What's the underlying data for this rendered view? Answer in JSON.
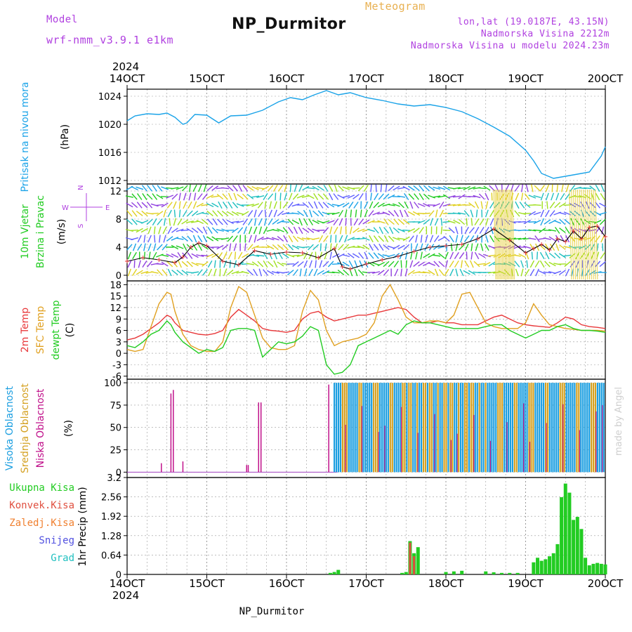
{
  "header": {
    "model_label": "Model",
    "model_name": "wrf-nmm_v3.9.1 e1km",
    "chart_type_label": "Meteogram",
    "station": "NP_Durmitor",
    "lonlat": "lon,lat (19.0187E, 43.15N)",
    "elevation": "Nadmorska Visina 2212m",
    "model_elevation": "Nadmorska Visina u modelu 2024.23m",
    "credit": "made by Angel",
    "bottom_station": "NP_Durmitor"
  },
  "colors": {
    "pressure": "#1aa3e8",
    "temp2m": "#e8383a",
    "sfc": "#e0a020",
    "dewpt": "#22cc22",
    "high_cloud": "#1a9ee0",
    "mid_cloud": "#d4a020",
    "low_cloud": "#c0108a",
    "precip_total": "#22cc22",
    "precip_conv": "#e05040",
    "violet": "#b040e0"
  },
  "chart_data": [
    {
      "type": "line",
      "title": "Pritisak na nivou mora",
      "ylabel": "(hPa)",
      "x_axis": {
        "year": "2024",
        "ticks": [
          "14OCT",
          "15OCT",
          "16OCT",
          "17OCT",
          "18OCT",
          "19OCT",
          "20OCT"
        ],
        "range_days": [
          0,
          6
        ]
      },
      "ylim": [
        1011.5,
        1025
      ],
      "yticks": [
        "1012",
        "1016",
        "1020",
        "1024"
      ],
      "grid": true,
      "series": [
        {
          "x": [
            0,
            0.1,
            0.25,
            0.4,
            0.5,
            0.6,
            0.7,
            0.75,
            0.85,
            1.0,
            1.15,
            1.3,
            1.5,
            1.7,
            1.9,
            2.05,
            2.2,
            2.35,
            2.5,
            2.65,
            2.8,
            3.0,
            3.2,
            3.4,
            3.6,
            3.8,
            4.0,
            4.2,
            4.4,
            4.6,
            4.8,
            5.0,
            5.1,
            5.2,
            5.35,
            5.5,
            5.65,
            5.8,
            5.95,
            6.0
          ],
          "y": [
            1020.5,
            1021.2,
            1021.5,
            1021.4,
            1021.6,
            1021.0,
            1020.0,
            1020.2,
            1021.4,
            1021.3,
            1020.2,
            1021.2,
            1021.3,
            1022.0,
            1023.2,
            1023.8,
            1023.5,
            1024.2,
            1024.8,
            1024.2,
            1024.5,
            1023.8,
            1023.4,
            1022.9,
            1022.6,
            1022.8,
            1022.4,
            1021.8,
            1020.8,
            1019.6,
            1018.3,
            1016.3,
            1014.8,
            1013.0,
            1012.3,
            1012.6,
            1012.9,
            1013.2,
            1015.5,
            1016.8
          ]
        }
      ]
    },
    {
      "type": "line",
      "title": "10m Vjetar Brzina i Pravac",
      "ylabel": "(m/s)",
      "compass_labels": {
        "n": "N",
        "s": "S",
        "e": "E",
        "w": "W"
      },
      "ylim": [
        -0.8,
        13
      ],
      "yticks": [
        "0",
        "4",
        "8",
        "12"
      ],
      "grid": true,
      "series": [
        {
          "x": [
            0,
            0.2,
            0.4,
            0.6,
            0.7,
            0.8,
            0.9,
            1.0,
            1.2,
            1.4,
            1.6,
            1.8,
            2.0,
            2.2,
            2.4,
            2.6,
            2.7,
            2.8,
            3.0,
            3.2,
            3.4,
            3.6,
            3.8,
            4.0,
            4.2,
            4.4,
            4.6,
            4.8,
            5.0,
            5.1,
            5.2,
            5.3,
            5.4,
            5.5,
            5.6,
            5.7,
            5.8,
            5.9,
            6.0
          ],
          "y": [
            2,
            2.5,
            2.2,
            1.8,
            2.6,
            4,
            4.6,
            4.2,
            2,
            1.5,
            3.5,
            3,
            3.3,
            3.2,
            2.5,
            3.8,
            1.2,
            0.9,
            1.6,
            2.2,
            2.7,
            3.4,
            4,
            4.2,
            4.4,
            5.2,
            6.6,
            5,
            3.2,
            3.8,
            4.4,
            3.6,
            5.2,
            4.8,
            6.3,
            5.2,
            6.8,
            7,
            5.5
          ]
        }
      ]
    },
    {
      "type": "line",
      "legend": [
        "2m Temp",
        "SFC Temp",
        "dewpt Temp"
      ],
      "ylabel": "(C)",
      "ylim": [
        -6.8,
        19
      ],
      "yticks": [
        "-6",
        "-3",
        "0",
        "3",
        "6",
        "9",
        "12",
        "15",
        "18"
      ],
      "grid": true,
      "series": [
        {
          "name": "2m Temp",
          "x": [
            0,
            0.1,
            0.2,
            0.3,
            0.4,
            0.5,
            0.55,
            0.6,
            0.7,
            0.8,
            0.9,
            1.0,
            1.1,
            1.2,
            1.3,
            1.4,
            1.5,
            1.6,
            1.7,
            1.8,
            1.9,
            2.0,
            2.1,
            2.2,
            2.3,
            2.4,
            2.5,
            2.6,
            2.7,
            2.8,
            2.9,
            3.0,
            3.1,
            3.2,
            3.3,
            3.4,
            3.5,
            3.6,
            3.7,
            3.8,
            3.9,
            4.0,
            4.1,
            4.2,
            4.3,
            4.4,
            4.5,
            4.6,
            4.7,
            4.8,
            4.9,
            5.0,
            5.1,
            5.2,
            5.3,
            5.4,
            5.5,
            5.6,
            5.7,
            5.8,
            5.9,
            6.0
          ],
          "y": [
            3.5,
            4.0,
            5.0,
            6.5,
            8.0,
            10.0,
            9.5,
            8.0,
            6.0,
            5.5,
            5.0,
            4.8,
            5.2,
            6.0,
            9.5,
            11.5,
            10.0,
            8.5,
            6.5,
            6.0,
            5.8,
            5.5,
            6.0,
            9.0,
            10.5,
            11.0,
            9.5,
            8.5,
            9.0,
            9.5,
            10.0,
            10.0,
            10.5,
            11.0,
            11.5,
            12.0,
            11.5,
            9.5,
            8.0,
            8.0,
            8.5,
            8.0,
            8.0,
            7.5,
            7.5,
            7.5,
            8.5,
            9.5,
            10.0,
            9.0,
            8.0,
            7.5,
            7.2,
            7.0,
            6.8,
            8.0,
            9.5,
            9.0,
            7.5,
            7.0,
            6.8,
            6.5
          ]
        },
        {
          "name": "SFC Temp",
          "x": [
            0,
            0.1,
            0.2,
            0.3,
            0.4,
            0.5,
            0.55,
            0.6,
            0.7,
            0.8,
            0.9,
            1.0,
            1.1,
            1.2,
            1.3,
            1.4,
            1.5,
            1.6,
            1.7,
            1.8,
            1.9,
            2.0,
            2.1,
            2.2,
            2.3,
            2.4,
            2.5,
            2.6,
            2.7,
            2.8,
            2.9,
            3.0,
            3.1,
            3.2,
            3.3,
            3.4,
            3.5,
            3.6,
            3.7,
            3.8,
            3.9,
            4.0,
            4.1,
            4.2,
            4.3,
            4.4,
            4.5,
            4.6,
            4.7,
            4.8,
            4.9,
            5.0,
            5.1,
            5.2,
            5.3,
            5.4,
            5.5,
            5.6,
            5.7,
            5.8,
            5.9,
            6.0
          ],
          "y": [
            1.0,
            0.5,
            1.0,
            7.0,
            13.0,
            16.0,
            15.5,
            11.0,
            5.0,
            2.0,
            1.0,
            0.5,
            0.5,
            3.0,
            12.0,
            17.5,
            16.0,
            10.0,
            4.0,
            1.5,
            1.0,
            1.0,
            2.0,
            11.0,
            16.5,
            14.0,
            6.0,
            2.0,
            3.0,
            3.5,
            4.0,
            5.0,
            8.0,
            15.0,
            18.0,
            14.0,
            9.5,
            8.0,
            8.0,
            8.5,
            8.5,
            8.0,
            10.0,
            15.5,
            16.0,
            12.0,
            8.0,
            7.0,
            6.5,
            6.5,
            6.5,
            8.0,
            13.0,
            10.0,
            7.5,
            7.0,
            6.5,
            6.3,
            6.0,
            6.0,
            6.0,
            5.8
          ]
        },
        {
          "name": "dewpt Temp",
          "x": [
            0,
            0.1,
            0.2,
            0.3,
            0.4,
            0.5,
            0.55,
            0.6,
            0.7,
            0.8,
            0.9,
            1.0,
            1.1,
            1.2,
            1.3,
            1.4,
            1.5,
            1.6,
            1.7,
            1.8,
            1.9,
            2.0,
            2.1,
            2.2,
            2.3,
            2.4,
            2.5,
            2.6,
            2.7,
            2.8,
            2.9,
            3.0,
            3.1,
            3.2,
            3.3,
            3.4,
            3.5,
            3.6,
            3.7,
            3.8,
            3.9,
            4.0,
            4.1,
            4.2,
            4.3,
            4.4,
            4.5,
            4.6,
            4.7,
            4.8,
            4.9,
            5.0,
            5.1,
            5.2,
            5.3,
            5.4,
            5.5,
            5.6,
            5.7,
            5.8,
            5.9,
            6.0
          ],
          "y": [
            2.0,
            1.5,
            3.0,
            5.0,
            6.0,
            8.5,
            7.5,
            5.5,
            3.0,
            1.5,
            0.0,
            1.0,
            0.5,
            1.5,
            6.0,
            6.5,
            6.5,
            6.0,
            -1.0,
            1.0,
            3.0,
            2.5,
            3.0,
            4.5,
            7.0,
            6.0,
            -3.0,
            -5.5,
            -5.0,
            -3.0,
            2.0,
            3.0,
            4.0,
            5.0,
            6.0,
            5.0,
            7.5,
            8.5,
            8.0,
            8.0,
            7.5,
            7.0,
            6.5,
            6.5,
            6.5,
            6.5,
            7.0,
            7.5,
            7.5,
            6.0,
            5.0,
            4.0,
            5.0,
            6.0,
            6.0,
            7.0,
            7.5,
            6.5,
            6.0,
            6.0,
            5.8,
            5.5
          ]
        }
      ]
    },
    {
      "type": "bar",
      "legend": [
        "Visoka Oblacnost",
        "Srednja Oblacnost",
        "Niska Oblacnost"
      ],
      "ylabel": "(%)",
      "ylim": [
        0,
        100
      ],
      "yticks": [
        "0",
        "25",
        "50",
        "75",
        "100"
      ],
      "grid": true,
      "series": [
        {
          "name": "Niska Oblacnost",
          "x": [
            0.43,
            0.55,
            0.58,
            0.7,
            1.5,
            1.52,
            1.65,
            1.68,
            2.53
          ],
          "values": [
            10,
            88,
            92,
            12,
            8,
            8,
            78,
            78,
            98
          ]
        },
        {
          "name": "Visoka+Srednja Oblacnost (dense)",
          "x_range": [
            2.6,
            6.0
          ],
          "values": [
            100
          ]
        }
      ]
    },
    {
      "type": "bar",
      "legend": [
        "Ukupna Kisa",
        "Konvek.Kisa",
        "Zaledj.Kisa",
        "Snijeg",
        "Grad"
      ],
      "ylabel": "1hr Precip (mm)",
      "ylim": [
        0,
        3.2
      ],
      "yticks": [
        "0",
        "0.64",
        "1.28",
        "1.92",
        "2.56",
        "3.2"
      ],
      "grid": true,
      "series": [
        {
          "name": "Ukupna Kisa",
          "x": [
            2.55,
            2.6,
            2.65,
            3.45,
            3.5,
            3.55,
            3.6,
            3.65,
            4.0,
            4.1,
            4.2,
            4.5,
            4.6,
            4.7,
            4.8,
            4.9,
            5.1,
            5.15,
            5.2,
            5.25,
            5.3,
            5.35,
            5.4,
            5.45,
            5.5,
            5.55,
            5.6,
            5.65,
            5.7,
            5.75,
            5.8,
            5.85,
            5.9,
            5.95,
            6.0
          ],
          "values": [
            0.05,
            0.08,
            0.15,
            0.05,
            0.08,
            1.1,
            0.7,
            0.9,
            0.08,
            0.1,
            0.12,
            0.1,
            0.07,
            0.05,
            0.05,
            0.05,
            0.4,
            0.55,
            0.45,
            0.5,
            0.6,
            0.7,
            1.0,
            2.55,
            3.0,
            2.7,
            1.8,
            1.9,
            1.5,
            0.55,
            0.3,
            0.35,
            0.38,
            0.35,
            0.33
          ]
        },
        {
          "name": "Konvek.Kisa",
          "x": [
            3.55,
            3.6
          ],
          "values": [
            1.05,
            0.6
          ]
        }
      ]
    }
  ]
}
